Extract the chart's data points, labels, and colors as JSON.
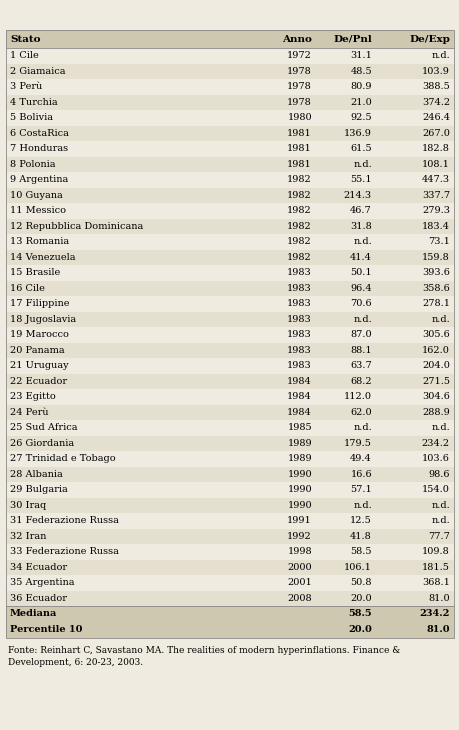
{
  "header": [
    "Stato",
    "Anno",
    "De/Pnl",
    "De/Exp"
  ],
  "rows": [
    [
      "1 Cile",
      "1972",
      "31.1",
      "n.d."
    ],
    [
      "2 Giamaica",
      "1978",
      "48.5",
      "103.9"
    ],
    [
      "3 Perù",
      "1978",
      "80.9",
      "388.5"
    ],
    [
      "4 Turchia",
      "1978",
      "21.0",
      "374.2"
    ],
    [
      "5 Bolivia",
      "1980",
      "92.5",
      "246.4"
    ],
    [
      "6 CostaRica",
      "1981",
      "136.9",
      "267.0"
    ],
    [
      "7 Honduras",
      "1981",
      "61.5",
      "182.8"
    ],
    [
      "8 Polonia",
      "1981",
      "n.d.",
      "108.1"
    ],
    [
      "9 Argentina",
      "1982",
      "55.1",
      "447.3"
    ],
    [
      "10 Guyana",
      "1982",
      "214.3",
      "337.7"
    ],
    [
      "11 Messico",
      "1982",
      "46.7",
      "279.3"
    ],
    [
      "12 Repubblica Dominicana",
      "1982",
      "31.8",
      "183.4"
    ],
    [
      "13 Romania",
      "1982",
      "n.d.",
      "73.1"
    ],
    [
      "14 Venezuela",
      "1982",
      "41.4",
      "159.8"
    ],
    [
      "15 Brasile",
      "1983",
      "50.1",
      "393.6"
    ],
    [
      "16 Cile",
      "1983",
      "96.4",
      "358.6"
    ],
    [
      "17 Filippine",
      "1983",
      "70.6",
      "278.1"
    ],
    [
      "18 Jugoslavia",
      "1983",
      "n.d.",
      "n.d."
    ],
    [
      "19 Marocco",
      "1983",
      "87.0",
      "305.6"
    ],
    [
      "20 Panama",
      "1983",
      "88.1",
      "162.0"
    ],
    [
      "21 Uruguay",
      "1983",
      "63.7",
      "204.0"
    ],
    [
      "22 Ecuador",
      "1984",
      "68.2",
      "271.5"
    ],
    [
      "23 Egitto",
      "1984",
      "112.0",
      "304.6"
    ],
    [
      "24 Perù",
      "1984",
      "62.0",
      "288.9"
    ],
    [
      "25 Sud Africa",
      "1985",
      "n.d.",
      "n.d."
    ],
    [
      "26 Giordania",
      "1989",
      "179.5",
      "234.2"
    ],
    [
      "27 Trinidad e Tobago",
      "1989",
      "49.4",
      "103.6"
    ],
    [
      "28 Albania",
      "1990",
      "16.6",
      "98.6"
    ],
    [
      "29 Bulgaria",
      "1990",
      "57.1",
      "154.0"
    ],
    [
      "30 Iraq",
      "1990",
      "n.d.",
      "n.d."
    ],
    [
      "31 Federazione Russa",
      "1991",
      "12.5",
      "n.d."
    ],
    [
      "32 Iran",
      "1992",
      "41.8",
      "77.7"
    ],
    [
      "33 Federazione Russa",
      "1998",
      "58.5",
      "109.8"
    ],
    [
      "34 Ecuador",
      "2000",
      "106.1",
      "181.5"
    ],
    [
      "35 Argentina",
      "2001",
      "50.8",
      "368.1"
    ],
    [
      "36 Ecuador",
      "2008",
      "20.0",
      "81.0"
    ]
  ],
  "summary_rows": [
    [
      "Mediana",
      "",
      "58.5",
      "234.2"
    ],
    [
      "Percentile 10",
      "",
      "20.0",
      "81.0"
    ]
  ],
  "footnote": "Fonte: Reinhart C, Savastano MA. The realities of modern hyperinflations. Finance &\nDevelopment, 6: 20-23, 2003.",
  "bg_color": "#f0ebe0",
  "header_bg": "#cfc8b0",
  "row_bg1": "#f0ebe0",
  "row_bg2": "#e5dfd0",
  "summary_bg": "#cfc8b0",
  "border_color": "#888888",
  "text_color": "#000000",
  "font_size": 7.0,
  "header_font_size": 7.5
}
